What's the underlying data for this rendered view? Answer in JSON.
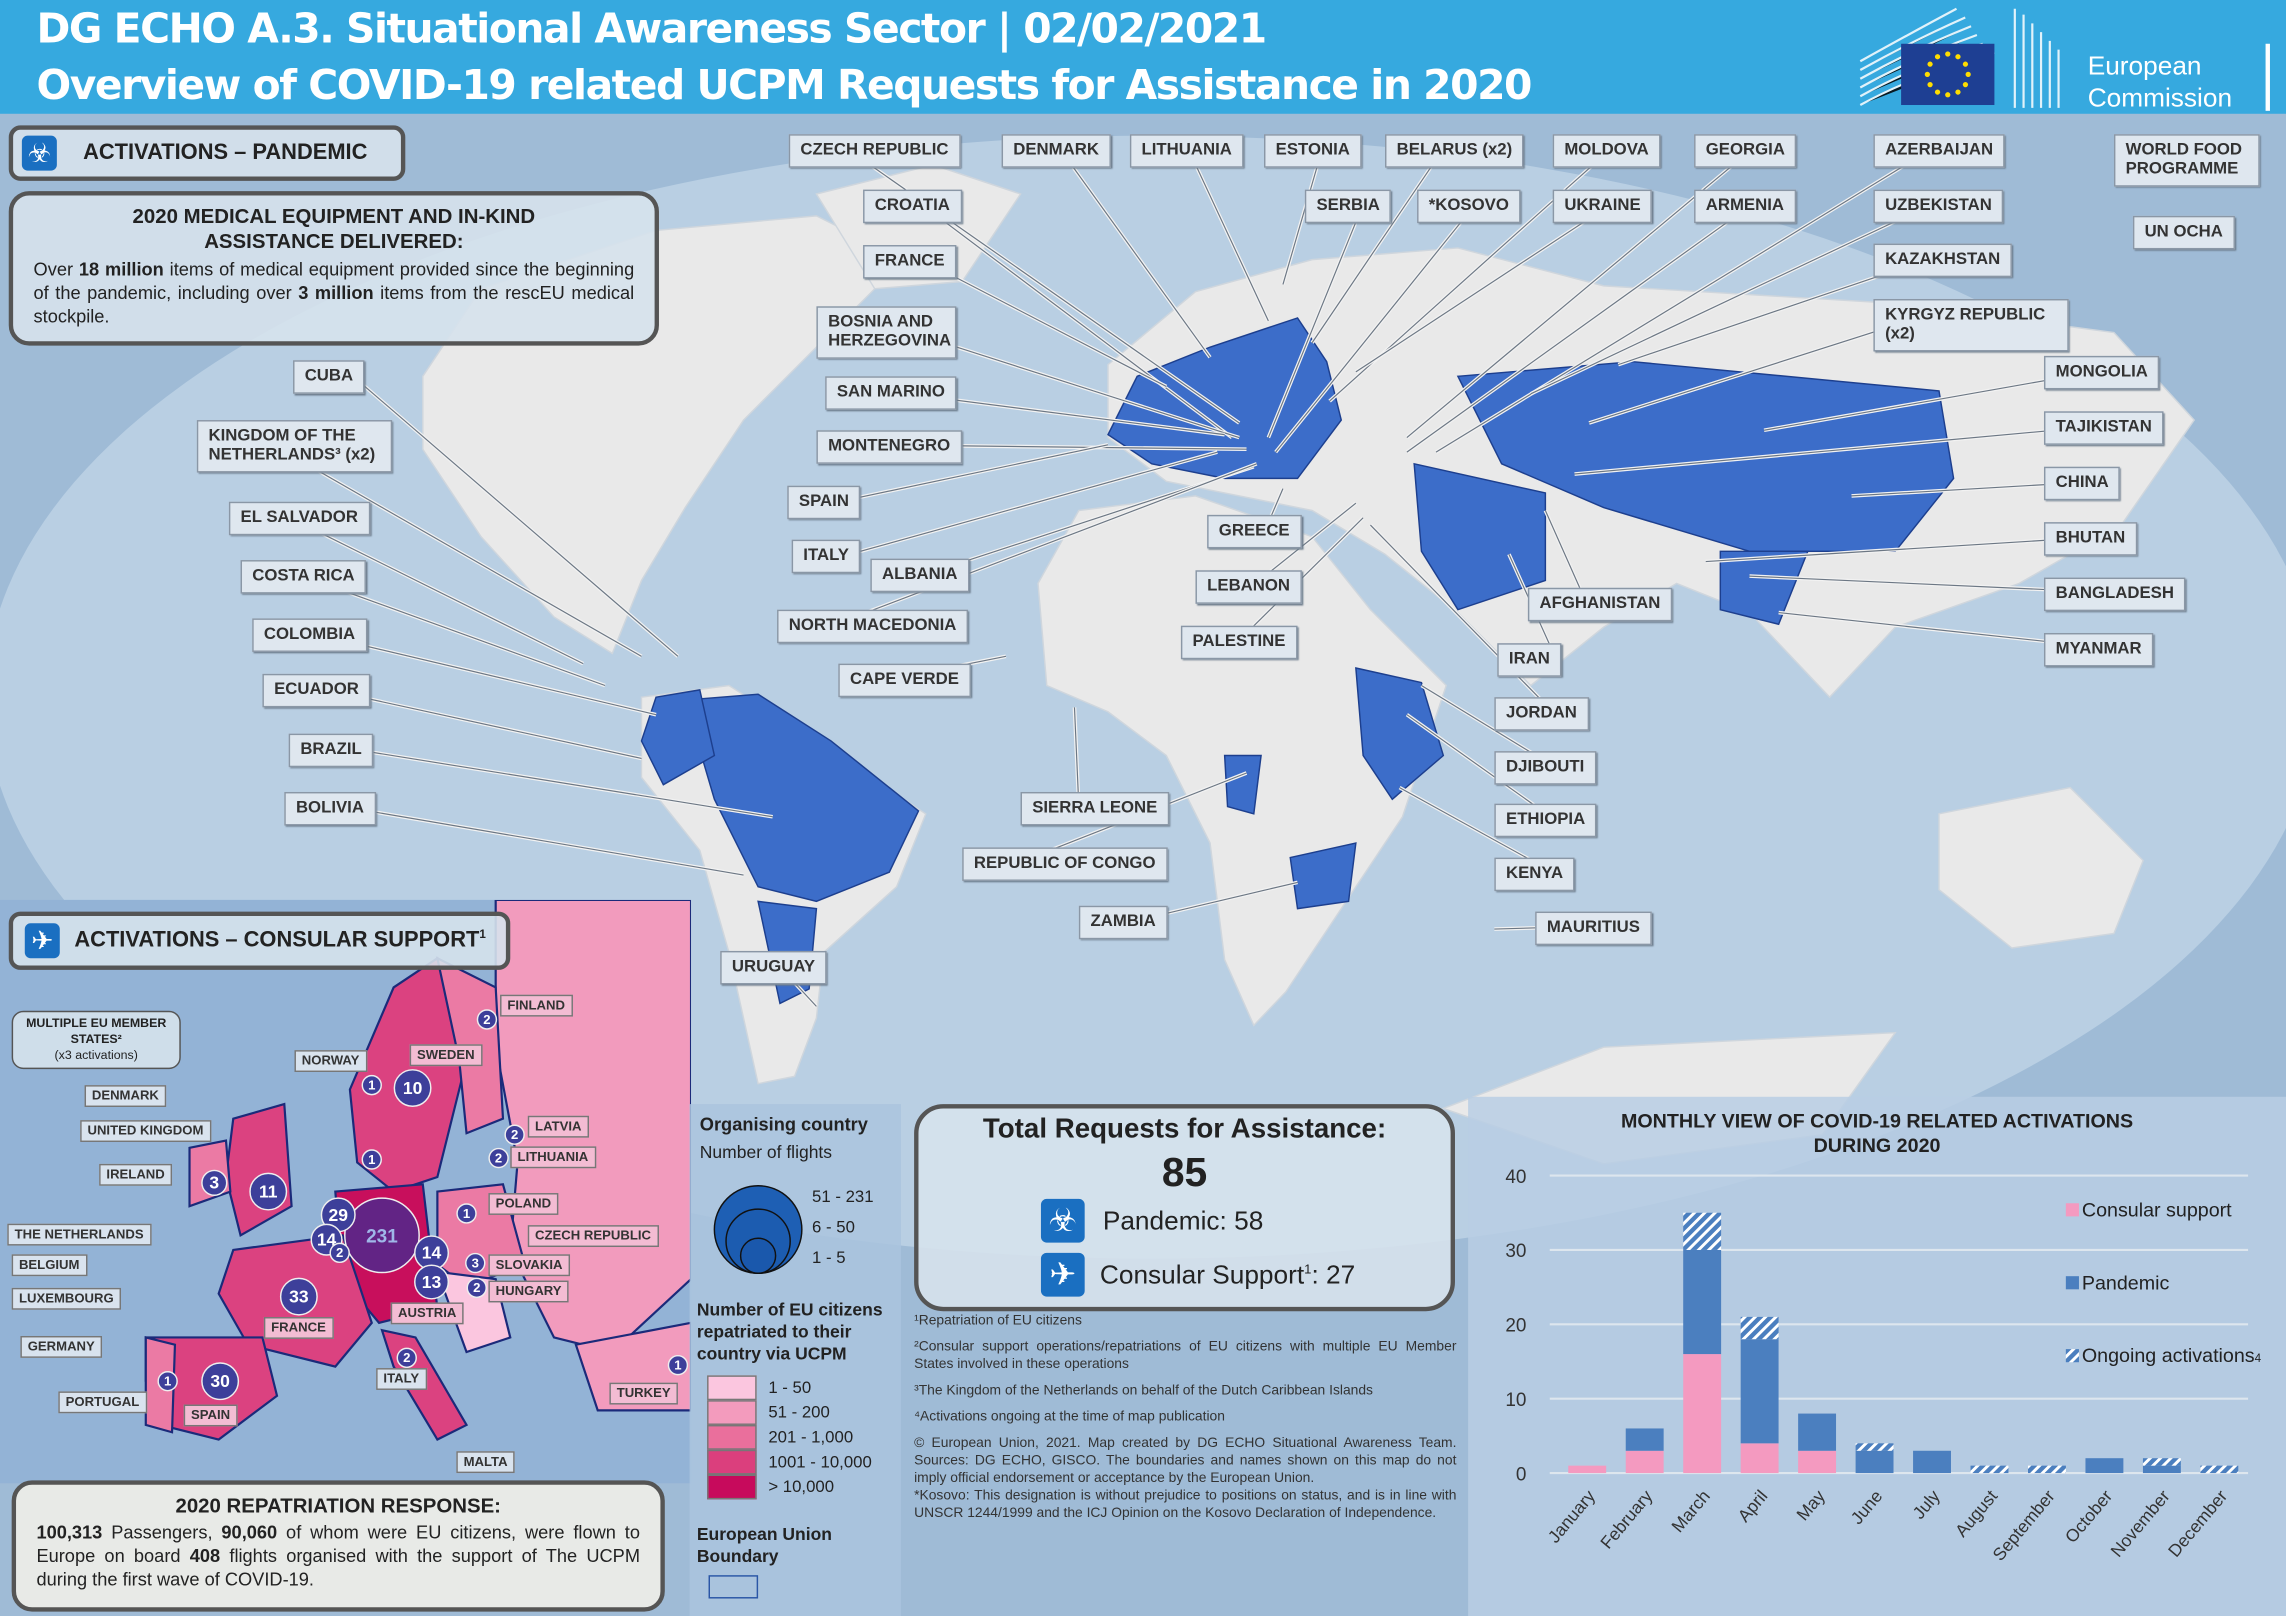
{
  "header": {
    "line1": "DG ECHO A.3. Situational Awareness Sector | 02/02/2021",
    "line2": "Overview of COVID-19 related UCPM Requests for Assistance in 2020",
    "logo_line1": "European",
    "logo_line2": "Commission"
  },
  "pandemic_panel": {
    "title": "ACTIVATIONS – PANDEMIC",
    "icon": "biohazard-icon"
  },
  "medical_box": {
    "title1": "2020 MEDICAL EQUIPMENT  AND IN-KIND",
    "title2": "ASSISTANCE DELIVERED:",
    "t1": "Over ",
    "b1": "18 million",
    "t2": " items of medical equipment provided since the beginning of the pandemic, including over ",
    "b2": "3 million",
    "t3": " items from the rescEU medical stockpile."
  },
  "pandemic_countries": [
    "CZECH REPUBLIC",
    "DENMARK",
    "LITHUANIA",
    "ESTONIA",
    "BELARUS (x2)",
    "MOLDOVA",
    "GEORGIA",
    "AZERBAIJAN",
    "WORLD FOOD PROGRAMME",
    "CROATIA",
    "SERBIA",
    "*KOSOVO",
    "UKRAINE",
    "ARMENIA",
    "UZBEKISTAN",
    "UN OCHA",
    "FRANCE",
    "KAZAKHSTAN",
    "BOSNIA AND HERZEGOVINA",
    "KYRGYZ REPUBLIC (x2)",
    "CUBA",
    "MONGOLIA",
    "SAN MARINO",
    "KINGDOM OF THE NETHERLANDS³ (x2)",
    "TAJIKISTAN",
    "MONTENEGRO",
    "CHINA",
    "SPAIN",
    "EL SALVADOR",
    "GREECE",
    "BHUTAN",
    "ITALY",
    "ALBANIA",
    "COSTA RICA",
    "LEBANON",
    "BANGLADESH",
    "AFGHANISTAN",
    "NORTH MACEDONIA",
    "COLOMBIA",
    "PALESTINE",
    "MYANMAR",
    "IRAN",
    "CAPE VERDE",
    "ECUADOR",
    "JORDAN",
    "BRAZIL",
    "DJIBOUTI",
    "SIERRA LEONE",
    "BOLIVIA",
    "ETHIOPIA",
    "REPUBLIC OF CONGO",
    "KENYA",
    "ZAMBIA",
    "MAURITIUS",
    "URUGUAY"
  ],
  "consular_panel": {
    "title": "ACTIVATIONS – CONSULAR  SUPPORT",
    "title_sup": "1",
    "icon": "airplane-icon",
    "multiple_line1": "MULTIPLE EU MEMBER",
    "multiple_line2": "STATES²",
    "multiple_line3": "(x3 activations)"
  },
  "consular_labels": [
    "FINLAND",
    "NORWAY",
    "SWEDEN",
    "DENMARK",
    "UNITED KINGDOM",
    "IRELAND",
    "LATVIA",
    "LITHUANIA",
    "POLAND",
    "THE NETHERLANDS",
    "CZECH REPUBLIC",
    "BELGIUM",
    "SLOVAKIA",
    "LUXEMBOURG",
    "HUNGARY",
    "FRANCE",
    "AUSTRIA",
    "GERMANY",
    "ITALY",
    "TURKEY",
    "PORTUGAL",
    "SPAIN",
    "MALTA"
  ],
  "consular_bubbles": [
    "231",
    "29",
    "14",
    "2",
    "11",
    "3",
    "10",
    "1",
    "2",
    "2",
    "2",
    "1",
    "1",
    "14",
    "13",
    "3",
    "2",
    "33",
    "30",
    "1",
    "2",
    "1"
  ],
  "repatriation": {
    "title": "2020 REPATRIATION  RESPONSE:",
    "b1": "100,313",
    "t1": " Passengers, ",
    "b2": "90,060",
    "t2": " of whom were EU citizens, were flown to Europe on board ",
    "b3": "408",
    "t3": " flights organised with the support of The UCPM during the first wave of COVID-19."
  },
  "legend": {
    "organising": "Organising country",
    "flights": "Number of flights",
    "flight_classes": [
      "51 - 231",
      "6 - 50",
      "1 - 5"
    ],
    "citizens_title": "Number of EU citizens repatriated to their country via UCPM",
    "citizen_classes": [
      "1 - 50",
      "51 - 200",
      "201 - 1,000",
      "1001 - 10,000",
      "> 10,000"
    ],
    "citizen_colors": [
      "#fbc6df",
      "#f39bbd",
      "#ea6f9c",
      "#db3f7d",
      "#c70a5c"
    ],
    "eu_boundary": "European Union Boundary"
  },
  "total": {
    "title": "Total Requests for Assistance:",
    "value": "85",
    "pandemic": "Pandemic: 58",
    "consular_a": "Consular Support",
    "consular_sup": "1",
    "consular_b": ": 27"
  },
  "footnotes": [
    "¹Repatriation  of EU citizens",
    "²Consular  support operations/repatriations  of EU citizens with multiple EU Member States involved  in these operations",
    "³The Kingdom of the Netherlands on behalf of the Dutch Caribbean Islands",
    "⁴Activations  ongoing at the time of map publication",
    "© European Union, 2021. Map created by DG ECHO Situational Awareness Team. Sources: DG ECHO, GISCO. The boundaries and names shown on this map do not imply official endorsement or acceptance  by the European  Union.",
    "*Kosovo: This designation is without prejudice to positions on status, and is in line with UNSCR 1244/1999 and the ICJ Opinion on the Kosovo Declaration of Independence."
  ],
  "chart_data": {
    "type": "bar",
    "stacked": true,
    "title": "MONTHLY VIEW OF COVID-19 RELATED ACTIVATIONS DURING 2020",
    "title_line1": "MONTHLY VIEW OF COVID-19 RELATED ACTIVATIONS",
    "title_line2": "DURING 2020",
    "categories": [
      "January",
      "February",
      "March",
      "April",
      "May",
      "June",
      "July",
      "August",
      "September",
      "October",
      "November",
      "December"
    ],
    "series": [
      {
        "name": "Consular support",
        "color": "#f49ac0",
        "values": [
          1,
          3,
          16,
          4,
          3,
          0,
          0,
          0,
          0,
          0,
          0,
          0
        ]
      },
      {
        "name": "Pandemic",
        "color": "#4b7fbf",
        "values": [
          0,
          3,
          14,
          14,
          5,
          3,
          3,
          0,
          0,
          2,
          1,
          0
        ]
      },
      {
        "name": "Ongoing activations",
        "name_sup": "4",
        "color": "#4b7fbf",
        "pattern": "hatched",
        "values": [
          0,
          0,
          5,
          3,
          0,
          1,
          0,
          1,
          1,
          0,
          1,
          1
        ]
      }
    ],
    "ylim": [
      0,
      40
    ],
    "yticks": [
      "0",
      "10",
      "20",
      "30",
      "40"
    ],
    "grid": true,
    "legend": "right"
  }
}
